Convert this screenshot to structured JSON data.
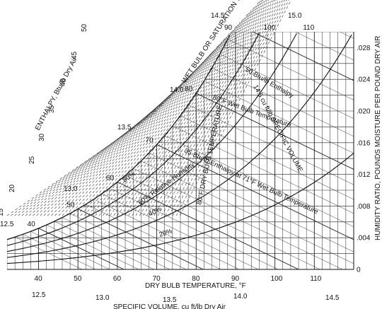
{
  "chart_data": {
    "type": "psychrometric",
    "x_axis": {
      "label": "DRY BULB TEMPERATURE, °F",
      "range": [
        32,
        120
      ],
      "ticks": [
        40,
        50,
        60,
        70,
        80,
        90,
        100,
        110
      ]
    },
    "y_axis_right": {
      "label": "HUMIDITY RATIO, POUNDS MOISTURE PER POUND DRY AIR",
      "range": [
        0,
        0.03
      ],
      "ticks": [
        0,
        0.004,
        0.008,
        0.012,
        0.016,
        0.02,
        0.024,
        0.028
      ],
      "tick_labels": [
        "0",
        ".004",
        ".008",
        ".012",
        ".016",
        ".020",
        ".024",
        ".028"
      ]
    },
    "enthalpy_scale": {
      "label": "ENTHALPY, Btu/lb Dry Air",
      "ticks": [
        12.5,
        15,
        20,
        25,
        30,
        35,
        40,
        45,
        50
      ],
      "tick_labels": [
        "12.5",
        "15",
        "20",
        "25",
        "30",
        "35",
        "40",
        "45",
        "50"
      ]
    },
    "specific_volume_scale": {
      "label": "SPECIFIC VOLUME, cu ft/lb Dry Air",
      "bottom_ticks": [
        "12.5",
        "13.0",
        "13.5",
        "14.0",
        "14.5"
      ],
      "curve_ticks": [
        "13.0",
        "13.5",
        "14.0",
        "14.5",
        "15.0"
      ]
    },
    "wet_bulb_scale": {
      "label": "WET BULB OR SATURATION TEMP",
      "ticks": [
        40,
        50,
        60,
        70,
        80,
        90,
        100,
        110
      ],
      "tick_labels": [
        "40",
        "50",
        "60",
        "70",
        "80",
        "90",
        "100",
        "110"
      ]
    },
    "relative_humidity_curves": [
      {
        "rh": 0.2,
        "label": "20%"
      },
      {
        "rh": 0.4,
        "label": "40%"
      },
      {
        "rh": 0.6,
        "label": "60% Relative Humidity"
      },
      {
        "rh": 0.8,
        "label": "80%"
      },
      {
        "rh": 1.0,
        "label": ""
      }
    ],
    "annotations": [
      "50 Btu/lb Enthalpy",
      "80°F Wet Bulb Temperature",
      "14.5 cu ft/lb SPECIFIC VOLUME",
      "35 Btu/lb Enthalpy at 71°F Wet Bulb Temperature",
      "80°F DRY BULB TEMPERATURE"
    ]
  }
}
